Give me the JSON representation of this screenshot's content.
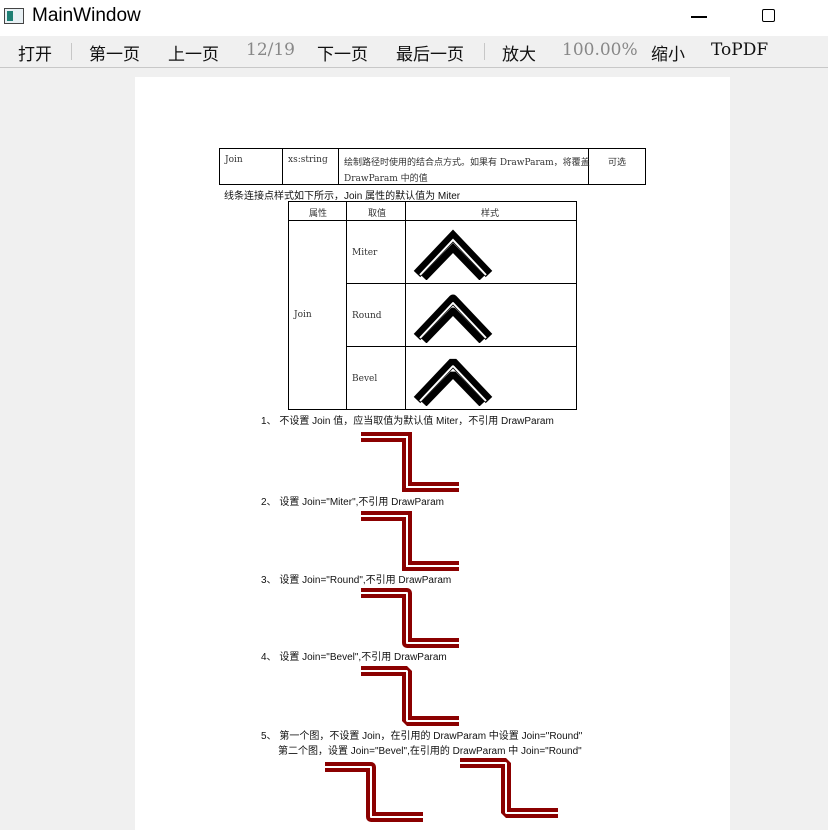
{
  "window": {
    "title": "MainWindow"
  },
  "toolbar": {
    "open": "打开",
    "first": "第一页",
    "prev": "上一页",
    "page_indicator": "12/19",
    "next": "下一页",
    "last": "最后一页",
    "zoom_in": "放大",
    "zoom_level": "100.00%",
    "zoom_out": "缩小",
    "to_pdf": "ToPDF"
  },
  "document": {
    "attr_row": {
      "name": "Join",
      "type": "xs:string",
      "desc_line1": "绘制路径时使用的结合点方式。如果有 DrawParam，将覆盖",
      "desc_line2": "DrawParam 中的值",
      "required": "可选"
    },
    "intro": "线条连接点样式如下所示，Join 属性的默认值为 Miter",
    "join_table": {
      "headers": [
        "属性",
        "取值",
        "样式"
      ],
      "attribute": "Join",
      "values": [
        "Miter",
        "Round",
        "Bevel"
      ]
    },
    "examples": [
      "1、 不设置 Join 值，应当取值为默认值 Miter，不引用 DrawParam",
      "2、 设置 Join=\"Miter\",不引用 DrawParam",
      "3、 设置 Join=\"Round\",不引用 DrawParam",
      "4、 设置 Join=\"Bevel\",不引用 DrawParam",
      "5、 第一个图，不设置 Join，在引用的 DrawParam 中设置 Join=\"Round\""
    ],
    "example5_line2": "第二个图，设置 Join=\"Bevel\",在引用的 DrawParam 中 Join=\"Round\"",
    "colors": {
      "sample_stroke": "#8b0000",
      "line_color": "#000000"
    },
    "sample_icons": [
      "stair-path-icon"
    ]
  }
}
